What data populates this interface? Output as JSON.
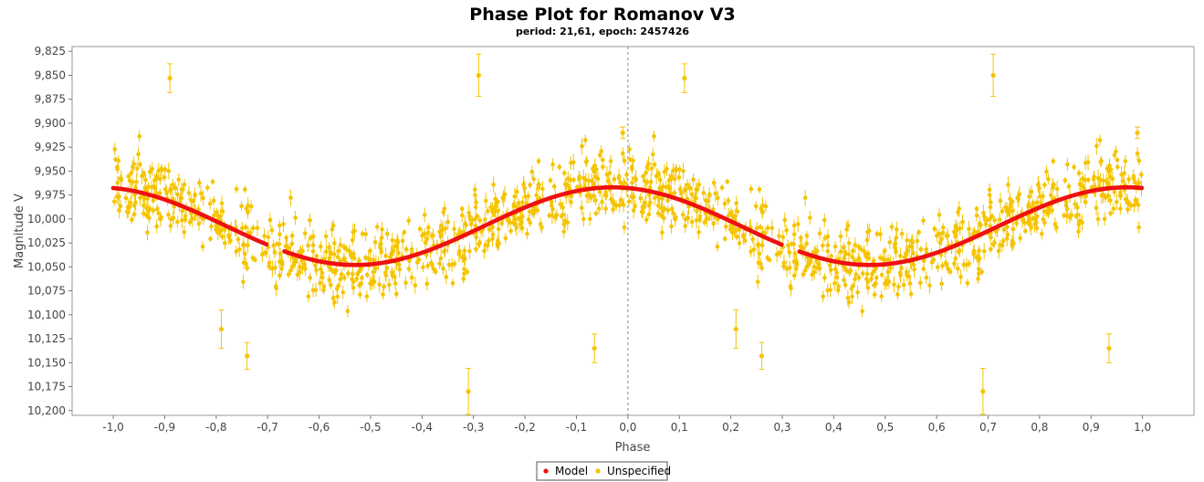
{
  "chart_data": {
    "type": "scatter",
    "title": "Phase Plot for Romanov V3",
    "subtitle": "period: 21,61, epoch: 2457426",
    "xlabel": "Phase",
    "ylabel": "Magnitude V",
    "xlim": [
      -1.08,
      1.1
    ],
    "ylim": [
      10.205,
      9.82
    ],
    "y_inverted": true,
    "grid": false,
    "zero_line": true,
    "x_ticks": [
      "-1,0",
      "-0,9",
      "-0,8",
      "-0,7",
      "-0,6",
      "-0,5",
      "-0,4",
      "-0,3",
      "-0,2",
      "-0,1",
      "0,0",
      "0,1",
      "0,2",
      "0,3",
      "0,4",
      "0,5",
      "0,6",
      "0,7",
      "0,8",
      "0,9",
      "1,0"
    ],
    "y_ticks": [
      "9,825",
      "9,850",
      "9,875",
      "9,900",
      "9,925",
      "9,950",
      "9,975",
      "10,000",
      "10,025",
      "10,050",
      "10,075",
      "10,100",
      "10,125",
      "10,150",
      "10,175",
      "10,200"
    ],
    "legend_position": "bottom-center",
    "model": {
      "name": "Model",
      "color": "#ee1111",
      "mean": 10.0075,
      "amplitude": 0.0405,
      "peak_phase": -0.03,
      "gaps": [
        [
          -0.7,
          -0.67
        ],
        [
          0.3,
          0.33
        ]
      ]
    },
    "series": [
      {
        "name": "Unspecified",
        "color": "#f5c400",
        "note_outliers": "representative isolated points with error bars",
        "outliers": [
          {
            "x": -0.89,
            "y": 9.853,
            "err": 0.015
          },
          {
            "x": 0.11,
            "y": 9.853,
            "err": 0.015
          },
          {
            "x": -0.29,
            "y": 9.85,
            "err": 0.022
          },
          {
            "x": 0.71,
            "y": 9.85,
            "err": 0.022
          },
          {
            "x": -0.31,
            "y": 10.18,
            "err": 0.024
          },
          {
            "x": 0.69,
            "y": 10.18,
            "err": 0.024
          },
          {
            "x": -0.79,
            "y": 10.115,
            "err": 0.02
          },
          {
            "x": 0.21,
            "y": 10.115,
            "err": 0.02
          },
          {
            "x": -0.74,
            "y": 10.143,
            "err": 0.014
          },
          {
            "x": 0.26,
            "y": 10.143,
            "err": 0.014
          },
          {
            "x": -0.065,
            "y": 10.135,
            "err": 0.015
          },
          {
            "x": 0.935,
            "y": 10.135,
            "err": 0.015
          },
          {
            "x": -0.01,
            "y": 9.91,
            "err": 0.006
          },
          {
            "x": 0.99,
            "y": 9.91,
            "err": 0.006
          }
        ],
        "cloud": {
          "count": 720,
          "scatter": 0.027,
          "seed": 17
        }
      }
    ]
  }
}
